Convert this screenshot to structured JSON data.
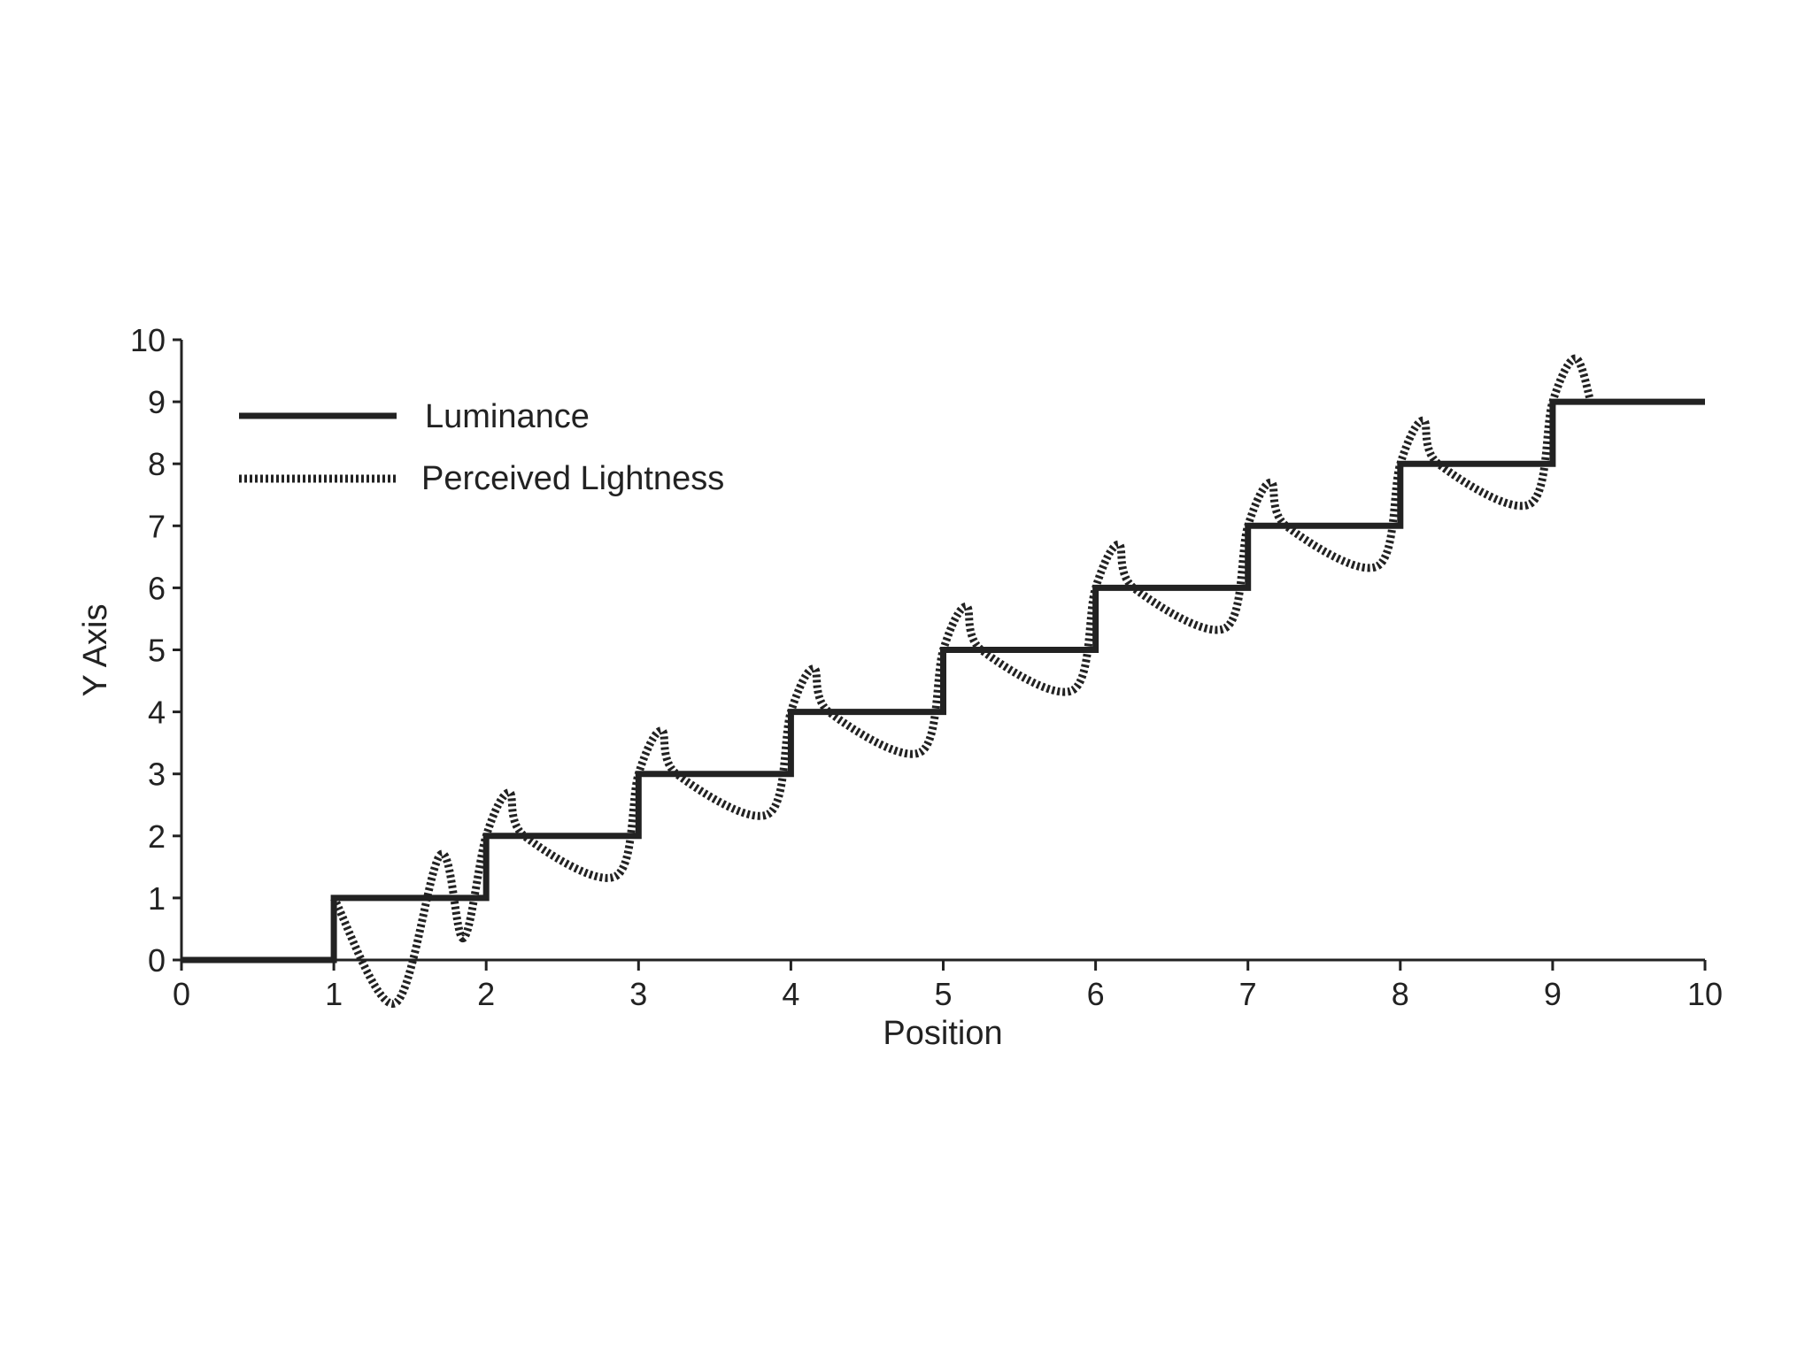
{
  "chart_data": {
    "type": "line",
    "title": "",
    "xlabel": "Position",
    "ylabel": "Y Axis",
    "xlim": [
      0,
      10
    ],
    "ylim": [
      0,
      10
    ],
    "xticks": [
      0,
      1,
      2,
      3,
      4,
      5,
      6,
      7,
      8,
      9,
      10
    ],
    "yticks": [
      0,
      1,
      2,
      3,
      4,
      5,
      6,
      7,
      8,
      9,
      10
    ],
    "grid": false,
    "legend": {
      "position": "top-left"
    },
    "series": [
      {
        "name": "Luminance",
        "style": "solid",
        "color": "#222222",
        "x": [
          0,
          1,
          1,
          2,
          2,
          3,
          3,
          4,
          4,
          5,
          5,
          6,
          6,
          7,
          7,
          8,
          8,
          9,
          9,
          10
        ],
        "y": [
          0,
          0,
          1,
          1,
          2,
          2,
          3,
          3,
          4,
          4,
          5,
          5,
          6,
          6,
          7,
          7,
          8,
          8,
          9,
          9
        ]
      },
      {
        "name": "Perceived Lightness",
        "style": "dotted",
        "color": "#222222",
        "x": [
          1.0,
          1.4,
          1.7,
          1.85,
          2.0,
          2.15,
          2.25,
          2.85,
          3.0,
          3.15,
          3.25,
          3.85,
          4.0,
          4.15,
          4.25,
          4.85,
          5.0,
          5.15,
          5.25,
          5.85,
          6.0,
          6.15,
          6.25,
          6.85,
          7.0,
          7.15,
          7.25,
          7.85,
          8.0,
          8.15,
          8.25,
          8.85,
          9.0,
          9.15,
          9.25
        ],
        "y": [
          1.0,
          -0.7,
          1.7,
          0.35,
          2.0,
          2.7,
          2.0,
          1.35,
          3.0,
          3.7,
          3.0,
          2.35,
          4.0,
          4.7,
          4.0,
          3.35,
          5.0,
          5.7,
          5.0,
          4.35,
          6.0,
          6.7,
          6.0,
          5.35,
          7.0,
          7.7,
          7.0,
          6.35,
          8.0,
          8.7,
          8.0,
          7.35,
          9.0,
          9.7,
          9.0
        ]
      }
    ]
  }
}
